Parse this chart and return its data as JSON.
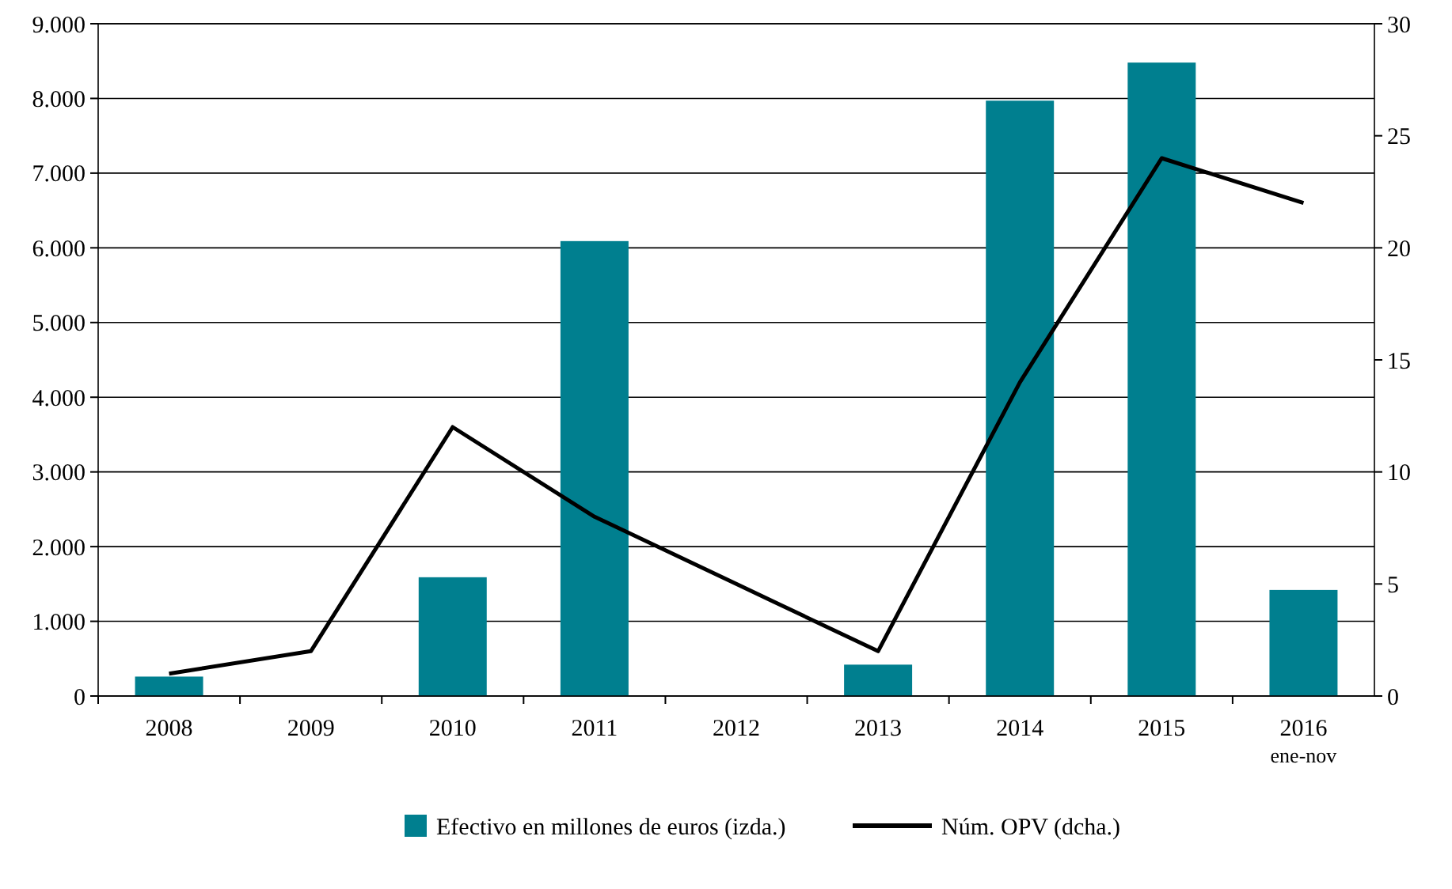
{
  "chart_data": {
    "type": "bar",
    "categories": [
      "2008",
      "2009",
      "2010",
      "2011",
      "2012",
      "2013",
      "2014",
      "2015",
      "2016\nene-nov"
    ],
    "series": [
      {
        "name": "Efectivo en millones de euros (izda.)",
        "color": "#007f8f",
        "values": [
          260,
          null,
          1590,
          6090,
          null,
          420,
          7970,
          8480,
          1420
        ]
      },
      {
        "name": "Núm. OPV (dcha.)",
        "type": "line",
        "axis": "y2",
        "color": "#000000",
        "values": [
          1,
          2,
          12,
          8,
          5,
          2,
          14,
          24,
          22
        ]
      }
    ],
    "ylim": [
      0,
      9000
    ],
    "yticks": [
      0,
      {
        "value": 1000,
        "label": "1.000"
      },
      {
        "value": 2000,
        "label": "2.000"
      },
      {
        "value": 3000,
        "label": "3.000"
      },
      {
        "value": 4000,
        "label": "4.000"
      },
      {
        "value": 5000,
        "label": "5.000"
      },
      {
        "value": 6000,
        "label": "6.000"
      },
      {
        "value": 7000,
        "label": "7.000"
      },
      {
        "value": 8000,
        "label": "8.000"
      },
      {
        "value": 9000,
        "label": "9.000"
      }
    ],
    "y2lim": [
      0,
      30
    ],
    "y2ticks": [
      0,
      5,
      10,
      15,
      20,
      25,
      30
    ],
    "grid": "y",
    "legend": "bottom",
    "marker": "none",
    "line_style": "solid"
  }
}
